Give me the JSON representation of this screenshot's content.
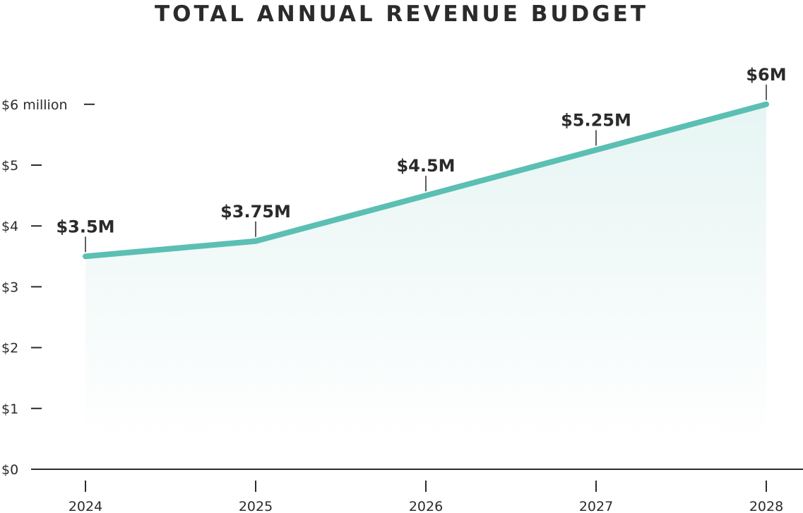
{
  "chart_data": {
    "type": "area",
    "title": "TOTAL ANNUAL REVENUE BUDGET",
    "xlabel": "",
    "ylabel": "",
    "categories": [
      "2024",
      "2025",
      "2026",
      "2027",
      "2028"
    ],
    "series": [
      {
        "values": [
          3.5,
          3.75,
          4.5,
          5.25,
          6
        ]
      }
    ],
    "data_labels": [
      "$3.5M",
      "$3.75M",
      "$4.5M",
      "$5.25M",
      "$6M"
    ],
    "ylim": [
      0,
      6
    ],
    "yticks": [
      {
        "value": 0,
        "label": "$0"
      },
      {
        "value": 1,
        "label": "$1"
      },
      {
        "value": 2,
        "label": "$2"
      },
      {
        "value": 3,
        "label": "$3"
      },
      {
        "value": 4,
        "label": "$4"
      },
      {
        "value": 5,
        "label": "$5"
      },
      {
        "value": 6,
        "label": "$6 million"
      }
    ],
    "grid": false,
    "colors": {
      "line": "#5bbfb3",
      "fill": "#e6f5f3",
      "text": "#2b2b2b"
    }
  }
}
